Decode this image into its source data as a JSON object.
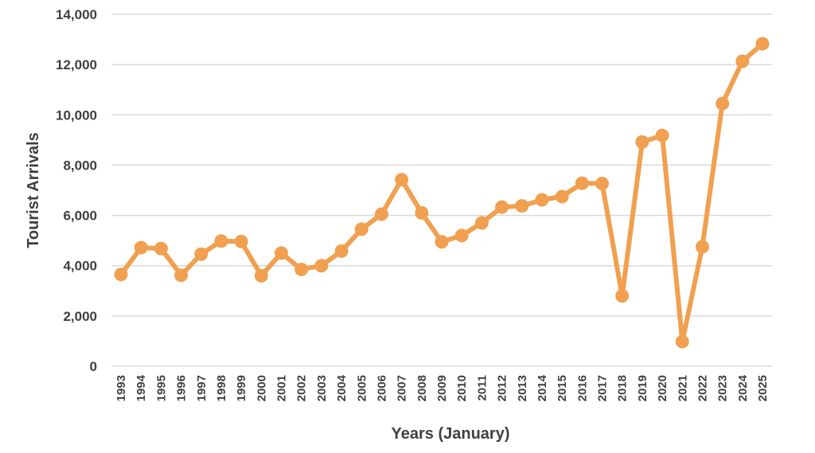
{
  "chart_data": {
    "type": "line",
    "title": "",
    "xlabel": "Years (January)",
    "ylabel": "Tourist Arrivals",
    "ylim": [
      0,
      14000
    ],
    "yticks": [
      0,
      2000,
      4000,
      6000,
      8000,
      10000,
      12000,
      14000
    ],
    "ytick_labels": [
      "0",
      "2,000",
      "4,000",
      "6,000",
      "8,000",
      "10,000",
      "12,000",
      "14,000"
    ],
    "grid": "horizontal",
    "legend": "none",
    "color": "#f0a050",
    "categories": [
      "1993",
      "1994",
      "1995",
      "1996",
      "1997",
      "1998",
      "1999",
      "2000",
      "2001",
      "2002",
      "2003",
      "2004",
      "2005",
      "2006",
      "2007",
      "2008",
      "2009",
      "2010",
      "2011",
      "2012",
      "2013",
      "2014",
      "2015",
      "2016",
      "2017",
      "2018",
      "2019",
      "2020",
      "2021",
      "2022",
      "2023",
      "2024",
      "2025"
    ],
    "series": [
      {
        "values": [
          3650,
          4720,
          4680,
          3620,
          4460,
          4980,
          4960,
          3600,
          4500,
          3850,
          4000,
          4580,
          5450,
          6050,
          7420,
          6100,
          4950,
          5200,
          5700,
          6330,
          6380,
          6620,
          6750,
          7280,
          7270,
          2800,
          8920,
          9180,
          980,
          4750,
          10450,
          12130,
          12830
        ]
      }
    ]
  }
}
